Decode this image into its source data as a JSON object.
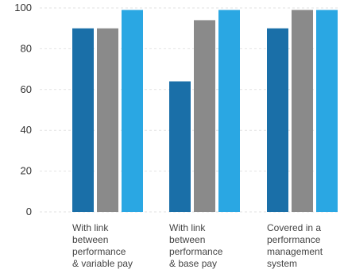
{
  "chart_data": {
    "type": "bar",
    "title": "",
    "xlabel": "",
    "ylabel": "",
    "ylim": [
      0,
      100
    ],
    "yticks": [
      0,
      20,
      40,
      60,
      80,
      100
    ],
    "grid": true,
    "legend": "none",
    "categories": [
      [
        "With link",
        "between",
        "performance",
        "& variable pay"
      ],
      [
        "With link",
        "between",
        "performance",
        "& base pay"
      ],
      [
        "Covered in a",
        "performance",
        "management",
        "system"
      ]
    ],
    "series": [
      {
        "color": "#1a6fa8",
        "values": [
          90,
          64,
          90
        ]
      },
      {
        "color": "#8a8a8a",
        "values": [
          90,
          94,
          99
        ]
      },
      {
        "color": "#2aa7e3",
        "values": [
          99,
          99,
          99
        ]
      }
    ]
  }
}
